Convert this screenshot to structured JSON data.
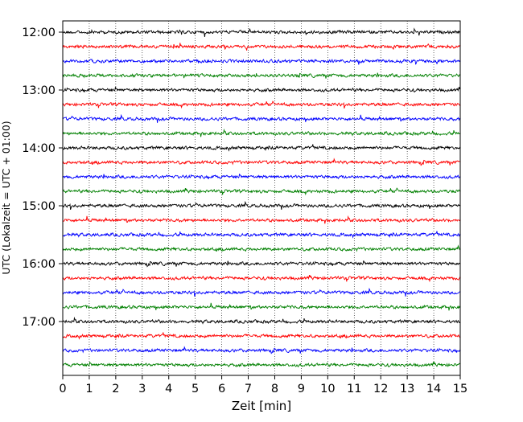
{
  "chart_data": {
    "type": "line",
    "xlabel": "Zeit  [min]",
    "ylabel": "UTC (Lokalzeit = UTC + 01:00)",
    "xlim": [
      0,
      15
    ],
    "x_ticks": [
      0,
      1,
      2,
      3,
      4,
      5,
      6,
      7,
      8,
      9,
      10,
      11,
      12,
      13,
      14,
      15
    ],
    "y_tick_labels": [
      "12:00",
      "13:00",
      "14:00",
      "15:00",
      "16:00",
      "17:00"
    ],
    "trace_interval_minutes": 15,
    "start_time": "12:00",
    "trace_count": 24,
    "trace_colors": [
      "#000000",
      "#ff0000",
      "#0000ff",
      "#008000"
    ],
    "grid": "vertical dotted lines at each minute",
    "series": [
      {
        "label": "12:00",
        "color": "#000000"
      },
      {
        "label": "12:15",
        "color": "#ff0000"
      },
      {
        "label": "12:30",
        "color": "#0000ff"
      },
      {
        "label": "12:45",
        "color": "#008000"
      },
      {
        "label": "13:00",
        "color": "#000000"
      },
      {
        "label": "13:15",
        "color": "#ff0000"
      },
      {
        "label": "13:30",
        "color": "#0000ff"
      },
      {
        "label": "13:45",
        "color": "#008000"
      },
      {
        "label": "14:00",
        "color": "#000000"
      },
      {
        "label": "14:15",
        "color": "#ff0000"
      },
      {
        "label": "14:30",
        "color": "#0000ff"
      },
      {
        "label": "14:45",
        "color": "#008000"
      },
      {
        "label": "15:00",
        "color": "#000000"
      },
      {
        "label": "15:15",
        "color": "#ff0000"
      },
      {
        "label": "15:30",
        "color": "#0000ff"
      },
      {
        "label": "15:45",
        "color": "#008000"
      },
      {
        "label": "16:00",
        "color": "#000000"
      },
      {
        "label": "16:15",
        "color": "#ff0000"
      },
      {
        "label": "16:30",
        "color": "#0000ff"
      },
      {
        "label": "16:45",
        "color": "#008000"
      },
      {
        "label": "17:00",
        "color": "#000000"
      },
      {
        "label": "17:15",
        "color": "#ff0000"
      },
      {
        "label": "17:30",
        "color": "#0000ff"
      },
      {
        "label": "17:45",
        "color": "#008000"
      }
    ]
  }
}
